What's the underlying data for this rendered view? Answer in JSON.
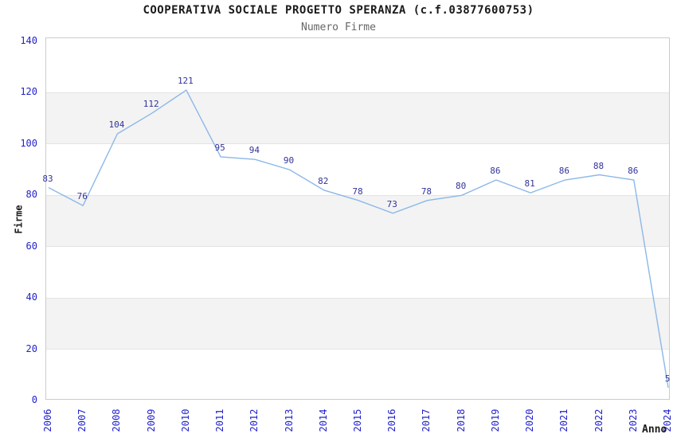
{
  "chart_data": {
    "type": "line",
    "title": "COOPERATIVA SOCIALE PROGETTO SPERANZA (c.f.03877600753)",
    "subtitle": "Numero Firme",
    "xlabel": "Anno",
    "ylabel": "Firme",
    "categories": [
      "2006",
      "2007",
      "2008",
      "2009",
      "2010",
      "2011",
      "2012",
      "2013",
      "2014",
      "2015",
      "2016",
      "2017",
      "2018",
      "2019",
      "2020",
      "2021",
      "2022",
      "2023",
      "2024"
    ],
    "series": [
      {
        "name": "Numero Firme",
        "values": [
          83,
          76,
          104,
          112,
          121,
          95,
          94,
          90,
          82,
          78,
          73,
          78,
          80,
          86,
          81,
          86,
          88,
          86,
          5
        ]
      }
    ],
    "point_labels": [
      "83",
      "76",
      "104",
      "112",
      "121",
      "95",
      "94",
      "90",
      "82",
      "78",
      "73",
      "78",
      "80",
      "86",
      "81",
      "86",
      "88",
      "86",
      "5"
    ],
    "ylim": [
      0,
      140
    ],
    "ytick_step": 20,
    "ytick_labels": [
      "0",
      "20",
      "40",
      "60",
      "80",
      "100",
      "120",
      "140"
    ],
    "grid": "alternating horizontal gray bands, no vertical gridlines",
    "band_value_ranges": [
      [
        20,
        40
      ],
      [
        60,
        80
      ],
      [
        100,
        120
      ]
    ],
    "legend_position": "none",
    "colors": {
      "line": "#8cb8e8",
      "data_label": "#333399",
      "tick_label": "#2222cc",
      "band": "#f3f3f3",
      "plot_border": "#cccccc",
      "title": "#1a1a1a",
      "subtitle": "#666666",
      "axis_label": "#1a1a1a",
      "background": "#ffffff"
    }
  }
}
